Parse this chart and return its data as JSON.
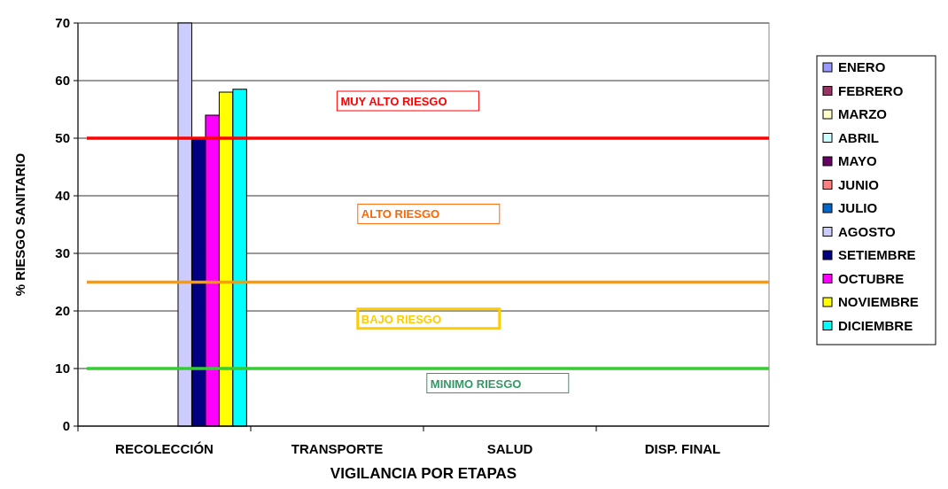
{
  "chart_data": {
    "type": "bar",
    "xlabel": "VIGILANCIA POR ETAPAS",
    "ylabel": "% RIESGO SANITARIO",
    "categories": [
      "RECOLECCIÓN",
      "TRANSPORTE",
      "SALUD",
      "DISP. FINAL"
    ],
    "series": [
      {
        "name": "ENERO",
        "color": "#9999ff",
        "values": [
          0,
          0,
          0,
          0
        ]
      },
      {
        "name": "FEBRERO",
        "color": "#993366",
        "values": [
          0,
          0,
          0,
          0
        ]
      },
      {
        "name": "MARZO",
        "color": "#ffffcc",
        "values": [
          0,
          0,
          0,
          0
        ]
      },
      {
        "name": "ABRIL",
        "color": "#ccffff",
        "values": [
          0,
          0,
          0,
          0
        ]
      },
      {
        "name": "MAYO",
        "color": "#660066",
        "values": [
          0,
          0,
          0,
          0
        ]
      },
      {
        "name": "JUNIO",
        "color": "#ff8080",
        "values": [
          0,
          0,
          0,
          0
        ]
      },
      {
        "name": "JULIO",
        "color": "#0066cc",
        "values": [
          0,
          0,
          0,
          0
        ]
      },
      {
        "name": "AGOSTO",
        "color": "#ccccff",
        "values": [
          70,
          0,
          0,
          0
        ]
      },
      {
        "name": "SETIEMBRE",
        "color": "#000080",
        "values": [
          50,
          0,
          0,
          0
        ]
      },
      {
        "name": "OCTUBRE",
        "color": "#ff00ff",
        "values": [
          54,
          0,
          0,
          0
        ]
      },
      {
        "name": "NOVIEMBRE",
        "color": "#ffff00",
        "values": [
          58,
          0,
          0,
          0
        ]
      },
      {
        "name": "DICIEMBRE",
        "color": "#00ffff",
        "values": [
          58.5,
          0,
          0,
          0
        ]
      }
    ],
    "ylim": [
      0,
      70
    ],
    "yticks": [
      0,
      10,
      20,
      30,
      40,
      50,
      60,
      70
    ],
    "grid": "y",
    "legend": "right",
    "ref_lines": [
      {
        "axis": "y",
        "value": 50,
        "color": "#ff0000"
      },
      {
        "axis": "y",
        "value": 25,
        "color": "#ff9900"
      },
      {
        "axis": "y",
        "value": 10,
        "color": "#33cc33"
      }
    ],
    "annotations": [
      "MUY ALTO RIESGO",
      "ALTO RIESGO",
      "BAJO RIESGO",
      "MINIMO RIESGO"
    ]
  }
}
